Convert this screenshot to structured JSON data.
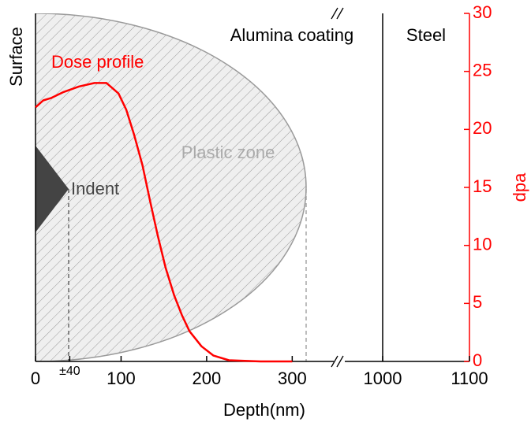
{
  "chart_data": {
    "type": "line",
    "x_label": "Depth(nm)",
    "y2_label": "dpa",
    "x": [
      0,
      9,
      18,
      32,
      51,
      69,
      83,
      97,
      106,
      115,
      125,
      134,
      143,
      152,
      162,
      171,
      180,
      194,
      208,
      226,
      263,
      300
    ],
    "series": [
      {
        "name": "Dose profile",
        "color": "#ff0000",
        "axis": "y2",
        "values": [
          21.9,
          22.5,
          22.7,
          23.2,
          23.7,
          24.0,
          24.0,
          23.1,
          21.7,
          19.6,
          16.9,
          13.8,
          10.8,
          8.1,
          5.7,
          4.0,
          2.6,
          1.3,
          0.5,
          0.1,
          0,
          0
        ]
      }
    ],
    "xlim_segments": [
      [
        0,
        355
      ],
      [
        950,
        1100
      ]
    ],
    "xticks": [
      0,
      {
        "value": 40,
        "label": "±40"
      },
      100,
      200,
      300,
      1000,
      1100
    ],
    "y2lim": [
      0,
      30
    ],
    "y2ticks": [
      0,
      5,
      10,
      15,
      20,
      25,
      30
    ],
    "y2_color": "#ff0000",
    "interface_depth": 1000,
    "annotations": [
      "Surface",
      "Alumina coating",
      "Steel",
      "Plastic zone",
      "Indent"
    ]
  }
}
